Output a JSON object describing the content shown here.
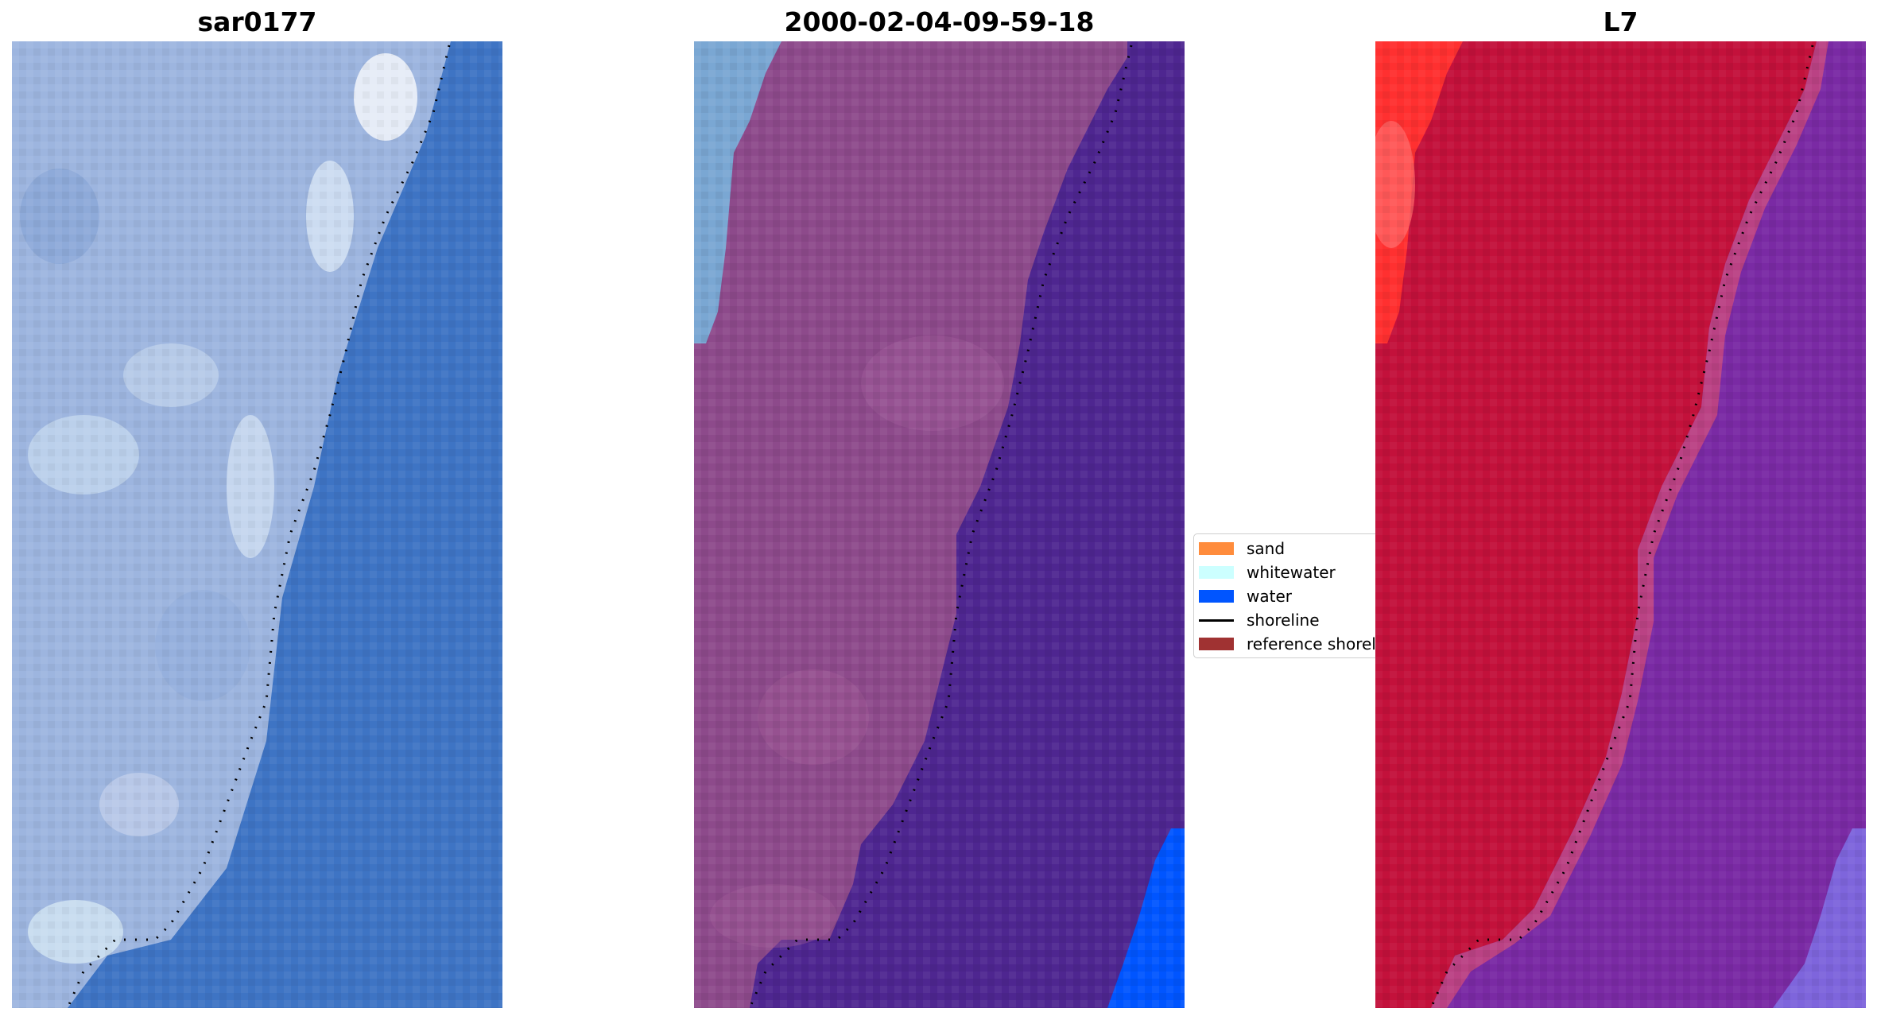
{
  "panels": [
    {
      "title": "sar0177"
    },
    {
      "title": "2000-02-04-09-59-18"
    },
    {
      "title": "L7"
    }
  ],
  "legend": {
    "items": [
      {
        "label": "sand",
        "color": "#ff8c3c",
        "kind": "patch"
      },
      {
        "label": "whitewater",
        "color": "#ccffff",
        "kind": "patch"
      },
      {
        "label": "water",
        "color": "#0055ff",
        "kind": "patch"
      },
      {
        "label": "shoreline",
        "color": "#000000",
        "kind": "line"
      },
      {
        "label": "reference shoreline",
        "color": "#a03232",
        "kind": "patch"
      }
    ]
  },
  "colors": {
    "rgb_land": "#9fb6e0",
    "rgb_water": "#3d73c4",
    "classified_land": "#8e4a8a",
    "classified_water": "#4e2690",
    "classified_whitewater": "#7faad4",
    "classified_water_class": "#0055ff",
    "ndwi_land": "#c3103a",
    "ndwi_water": "#7a2aa4",
    "ndwi_high": "#ff1a1a"
  }
}
